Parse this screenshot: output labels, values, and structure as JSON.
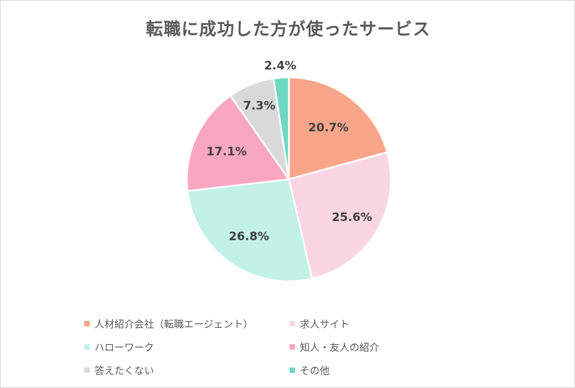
{
  "chart_data": {
    "type": "pie",
    "title": "転職に成功した方が使ったサービス",
    "start_angle_deg": 0,
    "direction": "clockwise",
    "slices": [
      {
        "label": "人材紹介会社（転職エージェント）",
        "value": 20.7,
        "display": "20.7%",
        "color": "#f9a58a"
      },
      {
        "label": "求人サイト",
        "value": 25.6,
        "display": "25.6%",
        "color": "#f9d6e2"
      },
      {
        "label": "ハローワーク",
        "value": 26.8,
        "display": "26.8%",
        "color": "#c2f1e7"
      },
      {
        "label": "知人・友人の紹介",
        "value": 17.1,
        "display": "17.1%",
        "color": "#f9a6c2"
      },
      {
        "label": "答えたくない",
        "value": 7.3,
        "display": "7.3%",
        "color": "#d9d9d9"
      },
      {
        "label": "その他",
        "value": 2.4,
        "display": "2.4%",
        "color": "#6dd8c4"
      }
    ],
    "legend_position": "bottom"
  }
}
